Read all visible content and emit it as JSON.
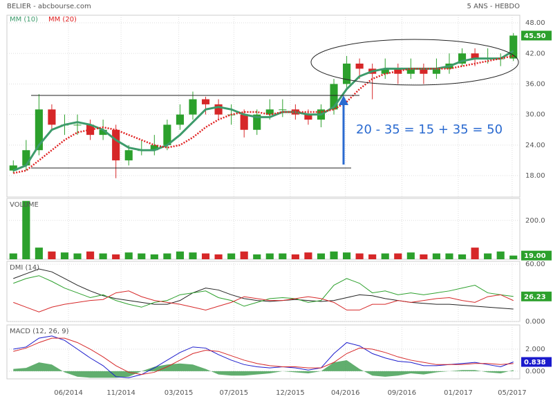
{
  "header": {
    "title": "BELIER - abcbourse.com",
    "period": "5 ANS - HEBDO"
  },
  "chart_data": [
    {
      "type": "candlestick",
      "annotation": "20 - 35 = 15 + 35 = 50",
      "last_value_label": "45.50",
      "up_color": "#2ca02c",
      "down_color": "#d62728",
      "x": [
        0,
        1,
        2,
        3,
        4,
        5,
        6,
        7,
        8,
        9,
        10,
        11,
        12,
        13,
        14,
        15,
        16,
        17,
        18,
        19,
        20,
        21,
        22,
        23,
        24,
        25,
        26,
        27,
        28,
        29,
        30,
        31,
        32,
        33,
        34,
        35,
        36,
        37,
        38,
        39
      ],
      "open": [
        19,
        20,
        23,
        31,
        28,
        28,
        28,
        26,
        27,
        21,
        23,
        23,
        24,
        28,
        30,
        33,
        32,
        30,
        30,
        27,
        30,
        31,
        31,
        30,
        29,
        31,
        36,
        40,
        39,
        38,
        39,
        38,
        39,
        38,
        39,
        40,
        42,
        41,
        41,
        41
      ],
      "high": [
        21,
        25,
        34,
        32,
        30,
        30,
        29,
        29,
        28,
        24,
        25,
        26,
        29,
        32,
        34.5,
        33.5,
        33,
        32,
        31,
        31,
        33,
        33,
        32,
        31,
        32,
        37,
        41.5,
        41,
        40,
        41,
        40,
        41,
        40,
        41,
        42,
        43,
        43,
        43,
        42,
        46
      ],
      "low": [
        18.5,
        19,
        22,
        27,
        26,
        26,
        25,
        25,
        17.5,
        20,
        22,
        22,
        23,
        27,
        29,
        30,
        29,
        28,
        25.5,
        26,
        29,
        29.5,
        29,
        28,
        27.5,
        30,
        35,
        37,
        33,
        37,
        36,
        37,
        36,
        37,
        38,
        39.5,
        39.5,
        40,
        39.5,
        40.5
      ],
      "close": [
        20,
        23,
        31,
        28,
        28,
        28,
        26,
        27,
        21,
        23,
        23,
        24,
        28,
        30,
        33,
        32,
        30,
        30,
        27,
        30,
        31,
        31,
        30,
        29,
        31,
        36,
        40,
        39,
        38,
        39,
        38,
        39,
        38,
        39,
        40,
        42,
        41,
        41,
        41,
        45.5
      ],
      "series": [
        {
          "name": "MM (10)",
          "color": "#3d9b6b",
          "values": [
            19,
            20,
            24,
            27,
            28,
            28.5,
            28,
            27,
            25,
            23.5,
            23,
            23,
            24,
            26,
            28.5,
            31,
            31.5,
            31,
            30,
            29.5,
            29.5,
            30.5,
            30.5,
            30,
            30,
            31.5,
            35,
            37.5,
            38.5,
            39,
            39,
            39,
            39,
            39,
            39.5,
            40.5,
            41,
            41,
            41,
            42.5
          ]
        },
        {
          "name": "MM (20)",
          "color": "#e02020",
          "values": [
            18.5,
            19,
            21,
            23,
            25,
            26.5,
            27,
            27.5,
            27,
            26,
            25,
            24,
            23.5,
            24,
            25.5,
            27.5,
            29,
            30,
            30.5,
            30.5,
            30,
            30.5,
            30.5,
            30.5,
            30.5,
            31,
            32.5,
            35,
            37,
            38,
            38.5,
            39,
            39,
            39,
            39,
            39.5,
            40,
            40.5,
            41,
            41.5
          ]
        }
      ],
      "xlim": [
        -0.5,
        39.5
      ],
      "ylim": [
        13.8,
        49.5
      ],
      "yticks": [
        {
          "value": 18,
          "label": "18.00"
        },
        {
          "value": 24,
          "label": "24.00"
        },
        {
          "value": 30,
          "label": "30.00"
        },
        {
          "value": 36,
          "label": "36.00"
        },
        {
          "value": 42,
          "label": "42.00"
        },
        {
          "value": 48,
          "label": "48.00"
        }
      ]
    },
    {
      "type": "bar",
      "title": "VOLUME",
      "last_value_label": "19.00",
      "color": "#2ca02c",
      "x": [
        0,
        1,
        2,
        3,
        4,
        5,
        6,
        7,
        8,
        9,
        10,
        11,
        12,
        13,
        14,
        15,
        16,
        17,
        18,
        19,
        20,
        21,
        22,
        23,
        24,
        25,
        26,
        27,
        28,
        29,
        30,
        31,
        32,
        33,
        34,
        35,
        36,
        37,
        38,
        39
      ],
      "values": [
        30,
        300,
        60,
        40,
        35,
        30,
        40,
        30,
        25,
        35,
        30,
        25,
        30,
        40,
        35,
        30,
        25,
        30,
        40,
        25,
        30,
        30,
        25,
        35,
        30,
        40,
        35,
        30,
        25,
        30,
        30,
        35,
        25,
        30,
        30,
        25,
        60,
        30,
        40,
        19
      ],
      "xlim": [
        -0.5,
        39.5
      ],
      "ylim": [
        0,
        313
      ],
      "yticks": [
        {
          "value": 200,
          "label": "200.0"
        }
      ]
    },
    {
      "type": "line",
      "title": "DMI (14)",
      "last_value_label": "26.23",
      "label_color": "#2ca02c",
      "x": [
        0,
        1,
        2,
        3,
        4,
        5,
        6,
        7,
        8,
        9,
        10,
        11,
        12,
        13,
        14,
        15,
        16,
        17,
        18,
        19,
        20,
        21,
        22,
        23,
        24,
        25,
        26,
        27,
        28,
        29,
        30,
        31,
        32,
        33,
        34,
        35,
        36,
        37,
        38,
        39
      ],
      "series": [
        {
          "color": "#222222",
          "values": [
            45,
            50,
            55,
            52,
            45,
            38,
            32,
            27,
            24,
            22,
            20,
            18,
            18,
            22,
            30,
            35,
            33,
            28,
            24,
            22,
            21,
            22,
            23,
            22,
            21,
            22,
            25,
            28,
            27,
            24,
            22,
            20,
            19,
            18,
            18,
            17,
            16,
            15,
            14,
            13
          ]
        },
        {
          "color": "#2ca02c",
          "values": [
            40,
            45,
            48,
            42,
            35,
            30,
            25,
            28,
            22,
            18,
            15,
            20,
            22,
            28,
            30,
            32,
            25,
            22,
            16,
            20,
            24,
            25,
            24,
            20,
            22,
            38,
            45,
            40,
            30,
            32,
            28,
            30,
            28,
            30,
            32,
            35,
            38,
            30,
            28,
            26.23
          ]
        },
        {
          "color": "#d62728",
          "values": [
            20,
            15,
            10,
            15,
            18,
            20,
            22,
            23,
            30,
            32,
            26,
            22,
            20,
            18,
            15,
            12,
            16,
            20,
            26,
            24,
            22,
            22,
            24,
            26,
            24,
            20,
            12,
            12,
            18,
            18,
            22,
            20,
            22,
            24,
            25,
            22,
            20,
            26,
            28,
            21.9
          ]
        }
      ],
      "xlim": [
        -0.5,
        39.5
      ],
      "ylim": [
        0,
        63
      ],
      "yticks": [
        {
          "value": 60,
          "label": "60.00"
        },
        {
          "value": 0,
          "label": "0.000"
        }
      ]
    },
    {
      "type": "line",
      "title": "MACD (12, 26, 9)",
      "last_value_label": "0.838",
      "label_color": "#1a1acc",
      "x": [
        0,
        1,
        2,
        3,
        4,
        5,
        6,
        7,
        8,
        9,
        10,
        11,
        12,
        13,
        14,
        15,
        16,
        17,
        18,
        19,
        20,
        21,
        22,
        23,
        24,
        25,
        26,
        27,
        28,
        29,
        30,
        31,
        32,
        33,
        34,
        35,
        36,
        37,
        38,
        39
      ],
      "series": [
        {
          "color": "#1a1acc",
          "values": [
            2,
            2.2,
            3,
            3.2,
            2.8,
            2,
            1.2,
            0.5,
            -0.5,
            -0.6,
            -0.3,
            0.3,
            1,
            1.7,
            2.2,
            2.1,
            1.5,
            1,
            0.6,
            0.4,
            0.3,
            0.4,
            0.3,
            0.1,
            0.3,
            1.6,
            2.6,
            2.3,
            1.6,
            1.2,
            0.9,
            0.8,
            0.5,
            0.5,
            0.6,
            0.7,
            0.8,
            0.6,
            0.4,
            0.838
          ]
        },
        {
          "color": "#d62728",
          "values": [
            1.8,
            2.1,
            2.6,
            3,
            3,
            2.6,
            2,
            1.3,
            0.5,
            -0.1,
            -0.3,
            -0.1,
            0.4,
            1,
            1.6,
            1.9,
            1.8,
            1.4,
            1,
            0.7,
            0.5,
            0.4,
            0.4,
            0.3,
            0.3,
            0.8,
            1.6,
            2.1,
            2,
            1.7,
            1.3,
            1,
            0.8,
            0.6,
            0.6,
            0.6,
            0.7,
            0.7,
            0.6,
            0.7
          ]
        }
      ],
      "histogram": {
        "color": "#3a9a4a",
        "values": [
          0.2,
          0.3,
          0.8,
          0.6,
          -0.1,
          -0.5,
          -0.6,
          -0.6,
          -0.6,
          -0.5,
          0,
          0.4,
          0.6,
          0.7,
          0.6,
          0.2,
          -0.3,
          -0.4,
          -0.4,
          -0.3,
          -0.2,
          0,
          -0.1,
          -0.2,
          0,
          0.8,
          1,
          0.2,
          -0.4,
          -0.5,
          -0.4,
          -0.2,
          -0.3,
          -0.1,
          0,
          0.1,
          0.1,
          -0.1,
          -0.2,
          0.1
        ]
      },
      "xlim": [
        -0.5,
        39.5
      ],
      "ylim": [
        -0.7,
        4.2
      ],
      "yticks": [
        {
          "value": 2,
          "label": "2.000"
        },
        {
          "value": 0,
          "label": "0.000"
        }
      ],
      "xticks": [
        {
          "value": 4.3,
          "label": "06/2014"
        },
        {
          "value": 8.4,
          "label": "11/2014"
        },
        {
          "value": 12.9,
          "label": "03/2015"
        },
        {
          "value": 17.2,
          "label": "07/2015"
        },
        {
          "value": 21.6,
          "label": "12/2015"
        },
        {
          "value": 25.9,
          "label": "04/2016"
        },
        {
          "value": 30.3,
          "label": "09/2016"
        },
        {
          "value": 34.7,
          "label": "01/2017"
        },
        {
          "value": 38.9,
          "label": "05/2017"
        }
      ]
    }
  ]
}
